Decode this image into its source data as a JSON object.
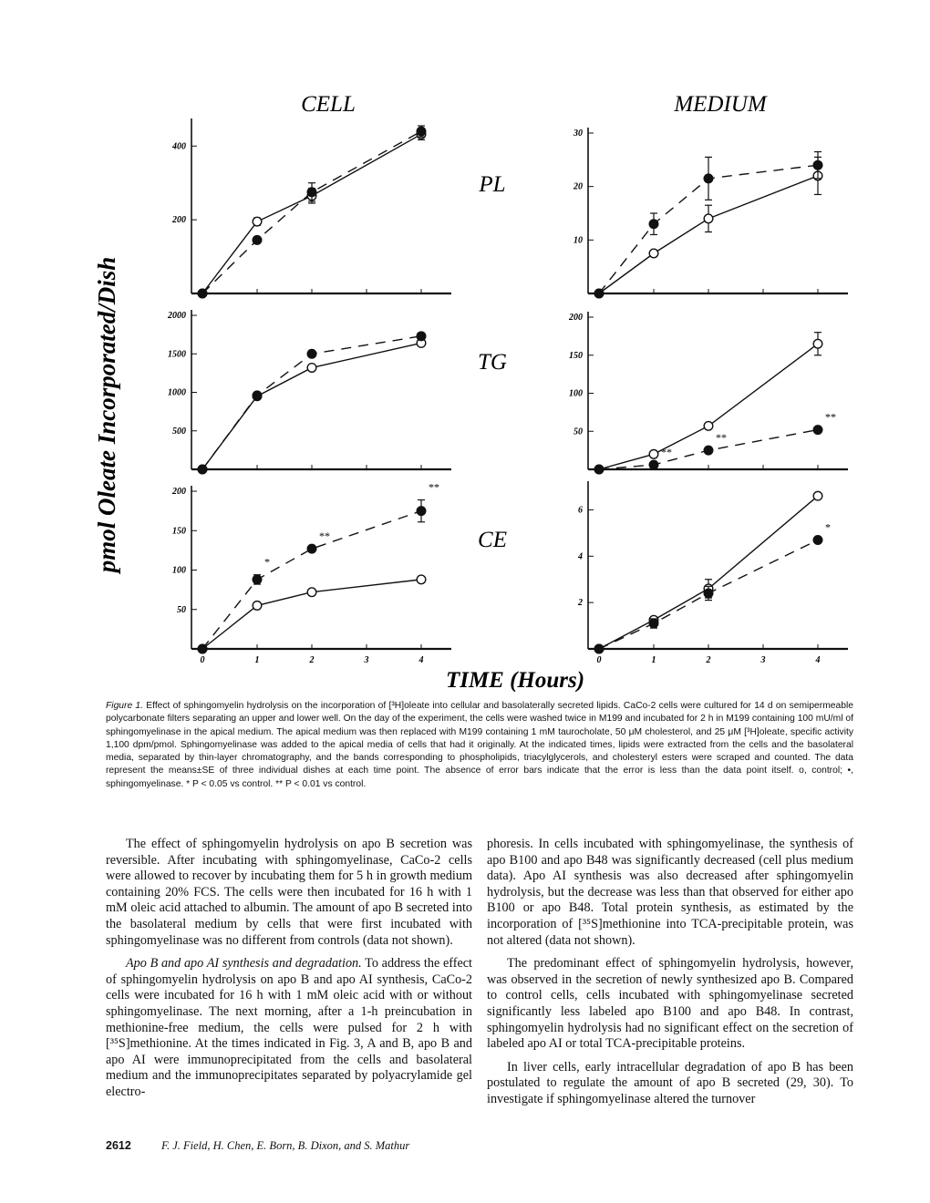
{
  "figure": {
    "col_titles": [
      "CELL",
      "MEDIUM"
    ],
    "row_labels": [
      "PL",
      "TG",
      "CE"
    ],
    "ylabel": "pmol Oleate Incorporated/Dish",
    "xlabel": "TIME (Hours)"
  },
  "chart_data": [
    {
      "panel": "cell-PL",
      "type": "line",
      "title": "",
      "xlabel": "TIME (Hours)",
      "ylabel": "pmol Oleate Incorporated/Dish",
      "x": [
        0,
        1,
        2,
        4
      ],
      "xticks": [
        "0",
        "1",
        "2",
        "3",
        "4"
      ],
      "yticks": [
        "0",
        "200",
        "400"
      ],
      "ylim": [
        0,
        460
      ],
      "series": [
        {
          "name": "control",
          "marker": "open",
          "style": "solid",
          "values": [
            0,
            195,
            265,
            432
          ],
          "err": [
            0,
            10,
            20,
            15
          ]
        },
        {
          "name": "sphingomyelinase",
          "marker": "filled",
          "style": "dashed",
          "values": [
            0,
            145,
            275,
            440
          ],
          "err": [
            0,
            0,
            25,
            15
          ]
        }
      ],
      "annotations": []
    },
    {
      "panel": "cell-TG",
      "type": "line",
      "title": "",
      "x": [
        0,
        1,
        2,
        4
      ],
      "xticks": [
        "0",
        "1",
        "2",
        "3",
        "4"
      ],
      "yticks": [
        "0",
        "500",
        "1000",
        "1500",
        "2000"
      ],
      "ylim": [
        0,
        2000
      ],
      "series": [
        {
          "name": "control",
          "marker": "open",
          "style": "solid",
          "values": [
            0,
            950,
            1320,
            1640
          ],
          "err": [
            0,
            0,
            0,
            0
          ]
        },
        {
          "name": "sphingomyelinase",
          "marker": "filled",
          "style": "dashed",
          "values": [
            0,
            960,
            1500,
            1730
          ],
          "err": [
            0,
            40,
            0,
            0
          ]
        }
      ],
      "annotations": []
    },
    {
      "panel": "cell-CE",
      "type": "line",
      "title": "",
      "x": [
        0,
        1,
        2,
        4
      ],
      "xticks": [
        "0",
        "1",
        "2",
        "3",
        "4"
      ],
      "yticks": [
        "0",
        "50",
        "100",
        "150",
        "200"
      ],
      "ylim": [
        0,
        200
      ],
      "series": [
        {
          "name": "control",
          "marker": "open",
          "style": "solid",
          "values": [
            0,
            55,
            72,
            88
          ],
          "err": [
            0,
            0,
            0,
            0
          ]
        },
        {
          "name": "sphingomyelinase",
          "marker": "filled",
          "style": "dashed",
          "values": [
            0,
            88,
            127,
            175
          ],
          "err": [
            0,
            6,
            0,
            14
          ]
        }
      ],
      "annotations": [
        {
          "x": 1,
          "text": "*"
        },
        {
          "x": 2,
          "text": "**"
        },
        {
          "x": 4,
          "text": "**"
        }
      ]
    },
    {
      "panel": "medium-PL",
      "type": "line",
      "title": "",
      "x": [
        0,
        1,
        2,
        4
      ],
      "xticks": [
        "0",
        "1",
        "2",
        "3",
        "4"
      ],
      "yticks": [
        "0",
        "10",
        "20",
        "30"
      ],
      "ylim": [
        0,
        30
      ],
      "series": [
        {
          "name": "control",
          "marker": "open",
          "style": "solid",
          "values": [
            0,
            7.5,
            14,
            22
          ],
          "err": [
            0,
            0,
            2.5,
            3.5
          ]
        },
        {
          "name": "sphingomyelinase",
          "marker": "filled",
          "style": "dashed",
          "values": [
            0,
            13,
            21.5,
            24
          ],
          "err": [
            0,
            2,
            4,
            2.5
          ]
        }
      ],
      "annotations": []
    },
    {
      "panel": "medium-TG",
      "type": "line",
      "title": "",
      "x": [
        0,
        1,
        2,
        4
      ],
      "xticks": [
        "0",
        "1",
        "2",
        "3",
        "4"
      ],
      "yticks": [
        "0",
        "50",
        "100",
        "150",
        "200"
      ],
      "ylim": [
        0,
        200
      ],
      "series": [
        {
          "name": "control",
          "marker": "open",
          "style": "solid",
          "values": [
            0,
            20,
            57,
            165
          ],
          "err": [
            0,
            0,
            0,
            15
          ]
        },
        {
          "name": "sphingomyelinase",
          "marker": "filled",
          "style": "dashed",
          "values": [
            0,
            6,
            25,
            52
          ],
          "err": [
            0,
            0,
            0,
            0
          ]
        }
      ],
      "annotations": [
        {
          "x": 1,
          "text": "**"
        },
        {
          "x": 2,
          "text": "**"
        },
        {
          "x": 4,
          "text": "**"
        }
      ]
    },
    {
      "panel": "medium-CE",
      "type": "line",
      "title": "",
      "x": [
        0,
        1,
        2,
        4
      ],
      "xticks": [
        "0",
        "1",
        "2",
        "3",
        "4"
      ],
      "yticks": [
        "2",
        "4",
        "6"
      ],
      "ylim": [
        0,
        7
      ],
      "tick_values": [
        2,
        4,
        6
      ],
      "series": [
        {
          "name": "control",
          "marker": "open",
          "style": "solid",
          "values": [
            0,
            1.25,
            2.6,
            6.6
          ],
          "err": [
            0,
            0.1,
            0.4,
            0
          ]
        },
        {
          "name": "sphingomyelinase",
          "marker": "filled",
          "style": "dashed",
          "values": [
            0,
            1.1,
            2.4,
            4.7
          ],
          "err": [
            0,
            0.2,
            0.3,
            0
          ]
        }
      ],
      "annotations": [
        {
          "x": 4,
          "text": "*"
        }
      ]
    }
  ],
  "caption": {
    "label": "Figure 1.",
    "text": "Effect of sphingomyelin hydrolysis on the incorporation of [³H]oleate into cellular and basolaterally secreted lipids. CaCo-2 cells were cultured for 14 d on semipermeable polycarbonate filters separating an upper and lower well. On the day of the experiment, the cells were washed twice in M199 and incubated for 2 h in M199 containing 100 mU/ml of sphingomyelinase in the apical medium. The apical medium was then replaced with M199 containing 1 mM taurocholate, 50 μM cholesterol, and 25 μM [³H]oleate, specific activity 1,100 dpm/pmol. Sphingomyelinase was added to the apical media of cells that had it originally. At the indicated times, lipids were extracted from the cells and the basolateral media, separated by thin-layer chromatography, and the bands corresponding to phospholipids, triacylglycerols, and cholesteryl esters were scraped and counted. The data represent the means±SE of three individual dishes at each time point. The absence of error bars indicate that the error is less than the data point itself. o, control; •, sphingomyelinase. * P < 0.05 vs control. ** P < 0.01 vs control."
  },
  "body": {
    "left": [
      "The effect of sphingomyelin hydrolysis on apo B secretion was reversible. After incubating with sphingomyelinase, CaCo-2 cells were allowed to recover by incubating them for 5 h in growth medium containing 20% FCS. The cells were then incubated for 16 h with 1 mM oleic acid attached to albumin. The amount of apo B secreted into the basolateral medium by cells that were first incubated with sphingomyelinase was no different from controls (data not shown)."
    ],
    "left_heading": "Apo B and apo AI synthesis and degradation.",
    "left_p2": "To address the effect of sphingomyelin hydrolysis on apo B and apo AI synthesis, CaCo-2 cells were incubated for 16 h with 1 mM oleic acid with or without sphingomyelinase. The next morning, after a 1-h preincubation in methionine-free medium, the cells were pulsed for 2 h with [³⁵S]methionine. At the times indicated in Fig. 3, A and B, apo B and apo AI were immunoprecipitated from the cells and basolateral medium and the immunoprecipitates separated by polyacrylamide gel electro-",
    "right": [
      "phoresis. In cells incubated with sphingomyelinase, the synthesis of apo B100 and apo B48 was significantly decreased (cell plus medium data). Apo AI synthesis was also decreased after sphingomyelin hydrolysis, but the decrease was less than that observed for either apo B100 or apo B48. Total protein synthesis, as estimated by the incorporation of [³⁵S]methionine into TCA-precipitable protein, was not altered (data not shown).",
      "The predominant effect of sphingomyelin hydrolysis, however, was observed in the secretion of newly synthesized apo B. Compared to control cells, cells incubated with sphingomyelinase secreted significantly less labeled apo B100 and apo B48. In contrast, sphingomyelin hydrolysis had no significant effect on the secretion of labeled apo AI or total TCA-precipitable proteins.",
      "In liver cells, early intracellular degradation of apo B has been postulated to regulate the amount of apo B secreted (29, 30). To investigate if sphingomyelinase altered the turnover"
    ]
  },
  "footer": {
    "page": "2612",
    "authors": "F. J. Field, H. Chen, E. Born, B. Dixon, and S. Mathur"
  }
}
